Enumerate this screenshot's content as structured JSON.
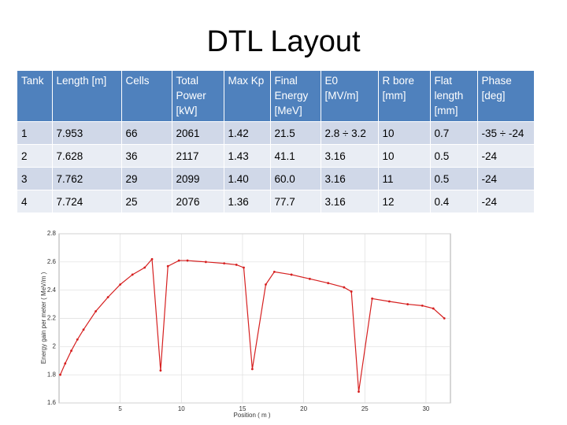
{
  "title": "DTL Layout",
  "table": {
    "header": [
      "Tank",
      "Length [m]",
      "Cells",
      "Total Power [kW]",
      "Max Kp",
      "Final Energy [MeV]",
      "E0 [MV/m]",
      "R bore [mm]",
      "Flat length [mm]",
      "Phase [deg]"
    ],
    "rows": [
      [
        "1",
        "7.953",
        "66",
        "2061",
        "1.42",
        "21.5",
        "2.8 ÷ 3.2",
        "10",
        "0.7",
        "-35 ÷ -24"
      ],
      [
        "2",
        "7.628",
        "36",
        "2117",
        "1.43",
        "41.1",
        "3.16",
        "10",
        "0.5",
        "-24"
      ],
      [
        "3",
        "7.762",
        "29",
        "2099",
        "1.40",
        "60.0",
        "3.16",
        "11",
        "0.5",
        "-24"
      ],
      [
        "4",
        "7.724",
        "25",
        "2076",
        "1.36",
        "77.7",
        "3.16",
        "12",
        "0.4",
        "-24"
      ]
    ]
  },
  "chart_data": {
    "type": "line",
    "x_label": "Position ( m )",
    "y_label": "Energy gain per meter ( MeV/m )",
    "x": [
      0.1,
      0.5,
      1,
      1.5,
      2,
      3,
      4,
      5,
      6,
      7,
      7.6,
      8.3,
      8.9,
      9.8,
      10.5,
      12,
      13.5,
      14.5,
      15.1,
      15.8,
      16.9,
      17.6,
      19,
      20.5,
      22,
      23.3,
      23.9,
      24.5,
      25.6,
      27,
      28.5,
      29.7,
      30.6,
      31.5
    ],
    "values": [
      1.8,
      1.88,
      1.97,
      2.05,
      2.12,
      2.25,
      2.35,
      2.44,
      2.51,
      2.56,
      2.62,
      1.83,
      2.57,
      2.61,
      2.61,
      2.6,
      2.59,
      2.58,
      2.56,
      1.84,
      2.44,
      2.53,
      2.51,
      2.48,
      2.45,
      2.42,
      2.39,
      1.68,
      2.34,
      2.32,
      2.3,
      2.29,
      2.27,
      2.2
    ],
    "color": "#d62020",
    "xlim": [
      0,
      32
    ],
    "xticks": [
      5,
      10,
      15,
      20,
      25,
      30
    ],
    "ylim": [
      1.6,
      2.8
    ],
    "yticks": [
      1.6,
      1.8,
      2,
      2.2,
      2.4,
      2.6,
      2.8
    ],
    "grid": true
  }
}
